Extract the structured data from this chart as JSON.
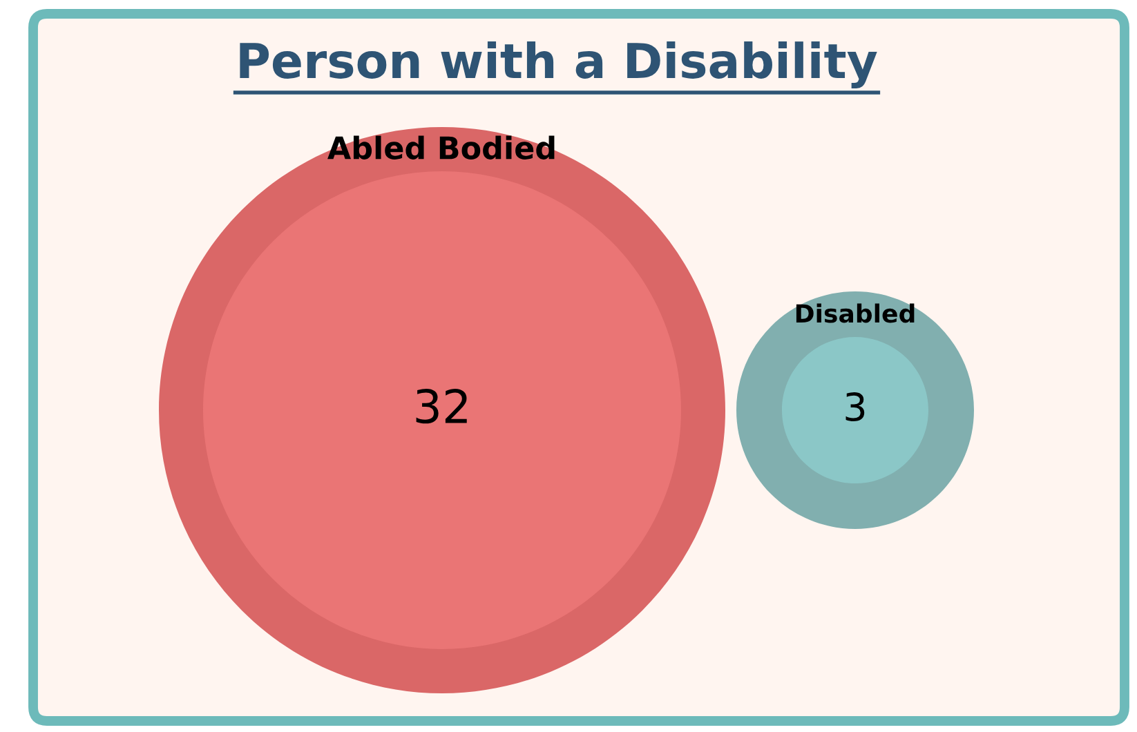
{
  "chart_data": {
    "type": "other",
    "title": "Person with a Disability",
    "categories": [
      "Abled Bodied",
      "Disabled"
    ],
    "values": [
      32,
      3
    ],
    "colors": [
      "#ea7575",
      "#8bc7c7"
    ],
    "data_labels": true
  }
}
